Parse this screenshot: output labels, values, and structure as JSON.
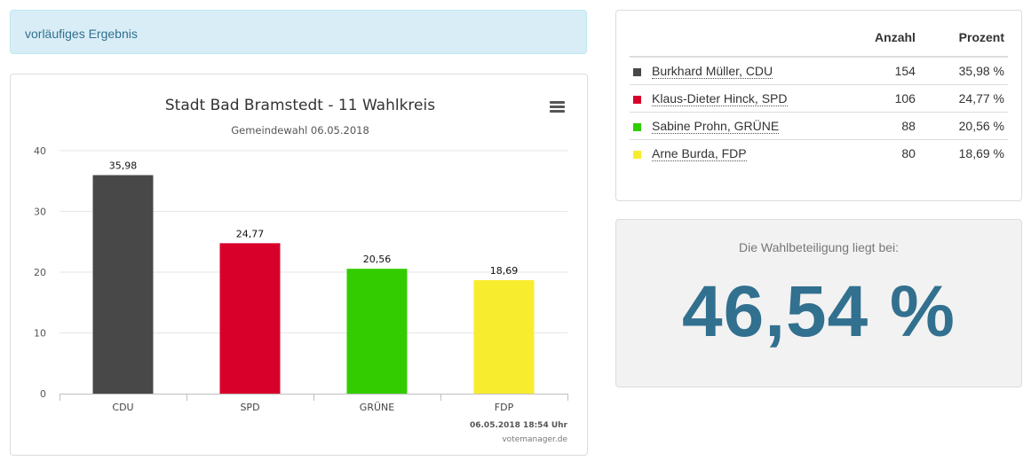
{
  "alert": {
    "text": "vorläufiges Ergebnis"
  },
  "chart": {
    "title": "Stadt Bad Bramstedt - 11 Wahlkreis",
    "subtitle": "Gemeindewahl 06.05.2018",
    "timestamp": "06.05.2018 18:54 Uhr",
    "credit": "votemanager.de",
    "menu_icon": "hamburger-menu-icon"
  },
  "chart_data": {
    "type": "bar",
    "title": "Stadt Bad Bramstedt - 11 Wahlkreis",
    "subtitle": "Gemeindewahl 06.05.2018",
    "categories": [
      "CDU",
      "SPD",
      "GRÜNE",
      "FDP"
    ],
    "values": [
      35.98,
      24.77,
      20.56,
      18.69
    ],
    "value_labels": [
      "35,98",
      "24,77",
      "20,56",
      "18,69"
    ],
    "colors": [
      "#484848",
      "#d8002a",
      "#33cc00",
      "#f8ec2f"
    ],
    "ylim": [
      0,
      40
    ],
    "yticks": [
      0,
      10,
      20,
      30,
      40
    ],
    "xlabel": "",
    "ylabel": "",
    "grid": true,
    "legend": "none"
  },
  "results_table": {
    "headers": {
      "count": "Anzahl",
      "percent": "Prozent"
    },
    "rows": [
      {
        "name": "Burkhard Müller, CDU",
        "count": "154",
        "percent": "35,98 %",
        "color": "#484848"
      },
      {
        "name": "Klaus-Dieter Hinck, SPD",
        "count": "106",
        "percent": "24,77 %",
        "color": "#d8002a"
      },
      {
        "name": "Sabine Prohn, GRÜNE",
        "count": "88",
        "percent": "20,56 %",
        "color": "#33cc00"
      },
      {
        "name": "Arne Burda, FDP",
        "count": "80",
        "percent": "18,69 %",
        "color": "#f8ec2f"
      }
    ]
  },
  "turnout": {
    "label": "Die Wahlbeteiligung liegt bei:",
    "value": "46,54 %"
  }
}
